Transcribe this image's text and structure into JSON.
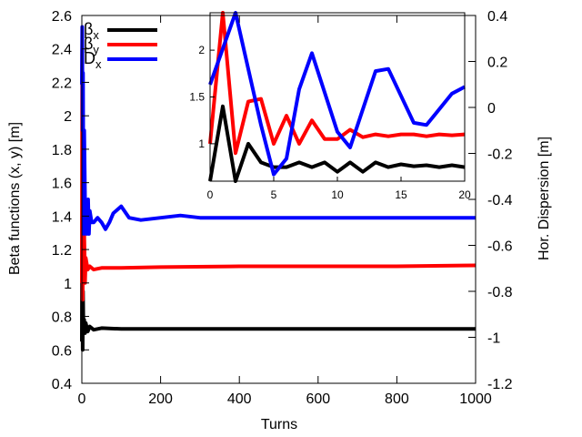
{
  "chart_data": [
    {
      "type": "line",
      "xlabel": "Turns",
      "ylabel": "Beta functions (x, y) [m]",
      "y2label": "Hor. Dispersion [m]",
      "xlim": [
        0,
        1000
      ],
      "ylim": [
        0.4,
        2.6
      ],
      "y2lim": [
        -1.2,
        0.4
      ],
      "xticks": [
        "0",
        "200",
        "400",
        "600",
        "800",
        "1000"
      ],
      "yticks": [
        "0.4",
        "0.6",
        "0.8",
        "1",
        "1.2",
        "1.4",
        "1.6",
        "1.8",
        "2",
        "2.2",
        "2.4",
        "2.6"
      ],
      "y2ticks": [
        "-1.2",
        "-1",
        "-0.8",
        "-0.6",
        "-0.4",
        "-0.2",
        "0",
        "0.2",
        "0.4"
      ],
      "legend_position": "top-left",
      "series": [
        {
          "name": "βx",
          "label_base": "β",
          "label_sub": "x",
          "color": "#000000",
          "axis": "left",
          "x": [
            0,
            1,
            2,
            3,
            4,
            5,
            6,
            8,
            10,
            15,
            20,
            30,
            50,
            100,
            200,
            400,
            600,
            800,
            1000
          ],
          "y": [
            0.65,
            1.4,
            0.6,
            0.95,
            0.75,
            0.72,
            0.78,
            0.7,
            0.76,
            0.71,
            0.74,
            0.72,
            0.73,
            0.725,
            0.725,
            0.725,
            0.725,
            0.725,
            0.725
          ]
        },
        {
          "name": "βy",
          "label_base": "β",
          "label_sub": "y",
          "color": "#ff0000",
          "axis": "left",
          "x": [
            0,
            1,
            2,
            3,
            4,
            5,
            6,
            8,
            10,
            15,
            20,
            30,
            50,
            100,
            200,
            400,
            600,
            800,
            1000
          ],
          "y": [
            1.0,
            2.4,
            0.9,
            1.45,
            1.48,
            1.0,
            1.3,
            1.0,
            1.15,
            1.08,
            1.1,
            1.08,
            1.09,
            1.09,
            1.095,
            1.1,
            1.1,
            1.1,
            1.105
          ]
        },
        {
          "name": "Dx",
          "label_base": "D",
          "label_sub": "x",
          "color": "#0000ff",
          "axis": "right",
          "x": [
            0,
            1,
            2,
            3,
            4,
            5,
            6,
            8,
            10,
            12,
            14,
            16,
            18,
            20,
            25,
            30,
            40,
            50,
            60,
            70,
            80,
            100,
            120,
            150,
            200,
            250,
            300,
            400,
            500,
            600,
            700,
            800,
            900,
            1000
          ],
          "y": [
            0.1,
            0.35,
            -0.1,
            0.15,
            -0.35,
            -0.55,
            -0.1,
            -0.4,
            -0.45,
            -0.55,
            -0.5,
            -0.4,
            -0.55,
            -0.45,
            -0.5,
            -0.5,
            -0.48,
            -0.5,
            -0.53,
            -0.5,
            -0.46,
            -0.43,
            -0.48,
            -0.49,
            -0.48,
            -0.47,
            -0.48,
            -0.48,
            -0.48,
            -0.48,
            -0.48,
            -0.48,
            -0.48,
            -0.48
          ]
        }
      ]
    },
    {
      "type": "line",
      "inset": true,
      "xlim": [
        0,
        20
      ],
      "ylim": [
        0.6,
        2.4
      ],
      "y2lim": [
        -0.35,
        0.4
      ],
      "xticks": [
        "0",
        "5",
        "10",
        "15",
        "20"
      ],
      "yticks": [
        "1",
        "1.5",
        "2"
      ],
      "series": [
        {
          "name": "βx",
          "color": "#000000",
          "axis": "left",
          "x": [
            0,
            1,
            2,
            3,
            4,
            5,
            6,
            7,
            8,
            9,
            10,
            11,
            12,
            13,
            14,
            15,
            16,
            17,
            18,
            19,
            20
          ],
          "y": [
            0.6,
            1.4,
            0.6,
            1.0,
            0.8,
            0.75,
            0.75,
            0.8,
            0.75,
            0.8,
            0.7,
            0.8,
            0.7,
            0.8,
            0.75,
            0.78,
            0.76,
            0.77,
            0.75,
            0.77,
            0.75
          ]
        },
        {
          "name": "βy",
          "color": "#ff0000",
          "axis": "left",
          "x": [
            0,
            1,
            2,
            3,
            4,
            5,
            6,
            7,
            8,
            9,
            10,
            11,
            12,
            13,
            14,
            15,
            16,
            17,
            18,
            19,
            20
          ],
          "y": [
            1.0,
            2.4,
            0.9,
            1.45,
            1.48,
            1.0,
            1.3,
            1.0,
            1.25,
            1.05,
            1.05,
            1.15,
            1.07,
            1.1,
            1.08,
            1.1,
            1.1,
            1.08,
            1.1,
            1.09,
            1.1
          ]
        },
        {
          "name": "Dx",
          "color": "#0000ff",
          "axis": "right",
          "x": [
            0,
            2,
            4,
            5,
            6,
            7,
            8,
            10,
            11,
            13,
            14,
            16,
            17,
            19,
            20
          ],
          "y": [
            0.08,
            0.4,
            -0.1,
            -0.32,
            -0.25,
            0.06,
            0.22,
            -0.13,
            -0.2,
            0.14,
            0.15,
            -0.09,
            -0.1,
            0.04,
            0.07
          ]
        }
      ]
    }
  ]
}
